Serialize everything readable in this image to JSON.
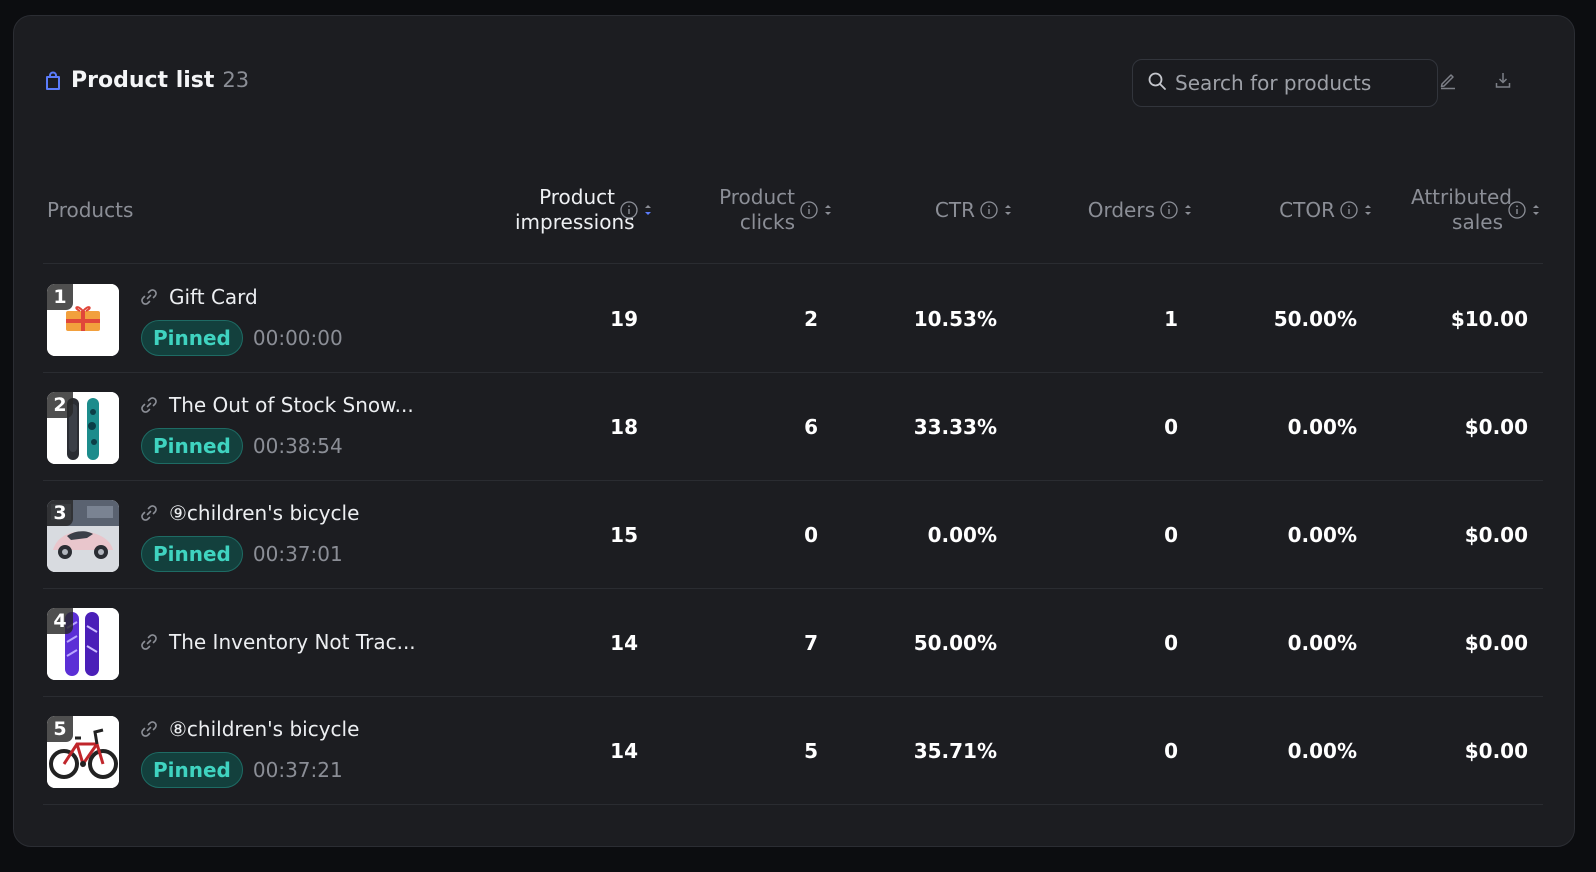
{
  "colors": {
    "background": "#0c0d10",
    "card": "#1c1d21",
    "accent": "#5b7cfa",
    "pinned_text": "#3fd3c0",
    "pinned_bg": "#13403d"
  },
  "header": {
    "icon": "shopping-bag-icon",
    "title": "Product list",
    "count": "23",
    "search_placeholder": "Search for products",
    "search_value": "",
    "edit_icon": "edit-icon",
    "download_icon": "download-icon"
  },
  "columns": {
    "products": "Products",
    "impressions": "Product impressions",
    "clicks": "Product clicks",
    "ctr": "CTR",
    "orders": "Orders",
    "ctor": "CTOR",
    "sales": "Attributed sales"
  },
  "rows": [
    {
      "rank": "1",
      "name": "Gift Card",
      "pinned": "Pinned",
      "time": "00:00:00",
      "impressions": "19",
      "clicks": "2",
      "ctr": "10.53%",
      "orders": "1",
      "ctor": "50.00%",
      "sales": "$10.00"
    },
    {
      "rank": "2",
      "name": "The Out of Stock Snow...",
      "pinned": "Pinned",
      "time": "00:38:54",
      "impressions": "18",
      "clicks": "6",
      "ctr": "33.33%",
      "orders": "0",
      "ctor": "0.00%",
      "sales": "$0.00"
    },
    {
      "rank": "3",
      "name": "⑨children's bicycle",
      "pinned": "Pinned",
      "time": "00:37:01",
      "impressions": "15",
      "clicks": "0",
      "ctr": "0.00%",
      "orders": "0",
      "ctor": "0.00%",
      "sales": "$0.00"
    },
    {
      "rank": "4",
      "name": "The Inventory Not Trac...",
      "pinned": null,
      "time": null,
      "impressions": "14",
      "clicks": "7",
      "ctr": "50.00%",
      "orders": "0",
      "ctor": "0.00%",
      "sales": "$0.00"
    },
    {
      "rank": "5",
      "name": "⑧children's bicycle",
      "pinned": "Pinned",
      "time": "00:37:21",
      "impressions": "14",
      "clicks": "5",
      "ctr": "35.71%",
      "orders": "0",
      "ctor": "0.00%",
      "sales": "$0.00"
    }
  ]
}
